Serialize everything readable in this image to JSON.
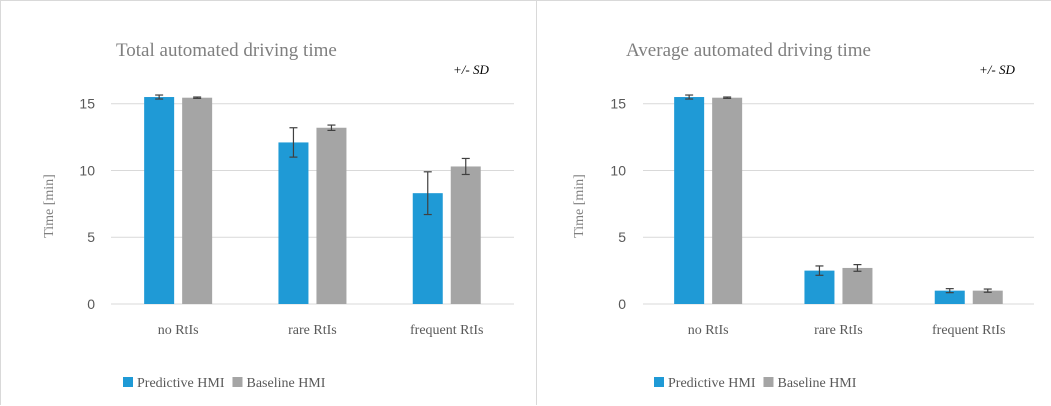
{
  "chart_data": [
    {
      "type": "bar",
      "title": "Total automated driving time",
      "note_prefix": "+/- ",
      "note_sd": "SD",
      "ylabel": "Time [min]",
      "xlabel": "",
      "ylim": [
        0,
        17
      ],
      "yticks": [
        0,
        5,
        10,
        15
      ],
      "grid": true,
      "legend_position": "bottom-left",
      "categories": [
        "no RtIs",
        "rare RtIs",
        "frequent RtIs"
      ],
      "series": [
        {
          "name": "Predictive HMI",
          "color": "#1f9ad6",
          "values": [
            15.5,
            12.1,
            8.3
          ],
          "sd": [
            0.15,
            1.1,
            1.6
          ]
        },
        {
          "name": "Baseline HMI",
          "color": "#a5a5a5",
          "values": [
            15.45,
            13.2,
            10.3
          ],
          "sd": [
            0.05,
            0.2,
            0.6
          ]
        }
      ]
    },
    {
      "type": "bar",
      "title": "Average automated driving time",
      "note_prefix": "+/- ",
      "note_sd": "SD",
      "ylabel": "Time [min]",
      "xlabel": "",
      "ylim": [
        0,
        17
      ],
      "yticks": [
        0,
        5,
        10,
        15
      ],
      "grid": true,
      "legend_position": "bottom-left",
      "categories": [
        "no RtIs",
        "rare RtIs",
        "frequent RtIs"
      ],
      "series": [
        {
          "name": "Predictive HMI",
          "color": "#1f9ad6",
          "values": [
            15.5,
            2.5,
            1.0
          ],
          "sd": [
            0.15,
            0.35,
            0.15
          ]
        },
        {
          "name": "Baseline HMI",
          "color": "#a5a5a5",
          "values": [
            15.45,
            2.7,
            1.0
          ],
          "sd": [
            0.05,
            0.25,
            0.12
          ]
        }
      ]
    }
  ]
}
